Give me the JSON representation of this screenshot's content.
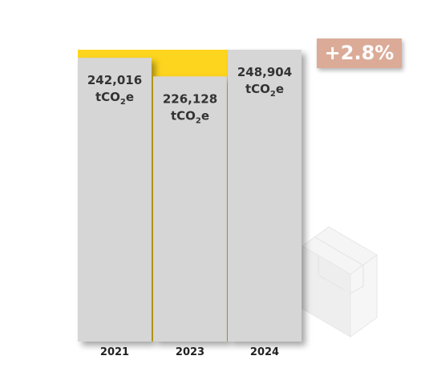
{
  "colors": {
    "bar": "#d6d6d6",
    "accent": "#fdd51f",
    "badge": "#dbab98",
    "box_icon": "#f1f1f1"
  },
  "change_badge": "+2.8%",
  "chart_data": {
    "type": "bar",
    "categories": [
      "2021",
      "2023",
      "2024"
    ],
    "values": [
      242016,
      226128,
      248904
    ],
    "value_labels": [
      "242,016",
      "226,128",
      "248,904"
    ],
    "unit_label": {
      "prefix": "tCO",
      "subscript": "2",
      "suffix": "e"
    },
    "ylim": [
      0,
      248904
    ],
    "grid": false,
    "legend": "none"
  },
  "icons": {
    "box": "package-box-icon"
  }
}
